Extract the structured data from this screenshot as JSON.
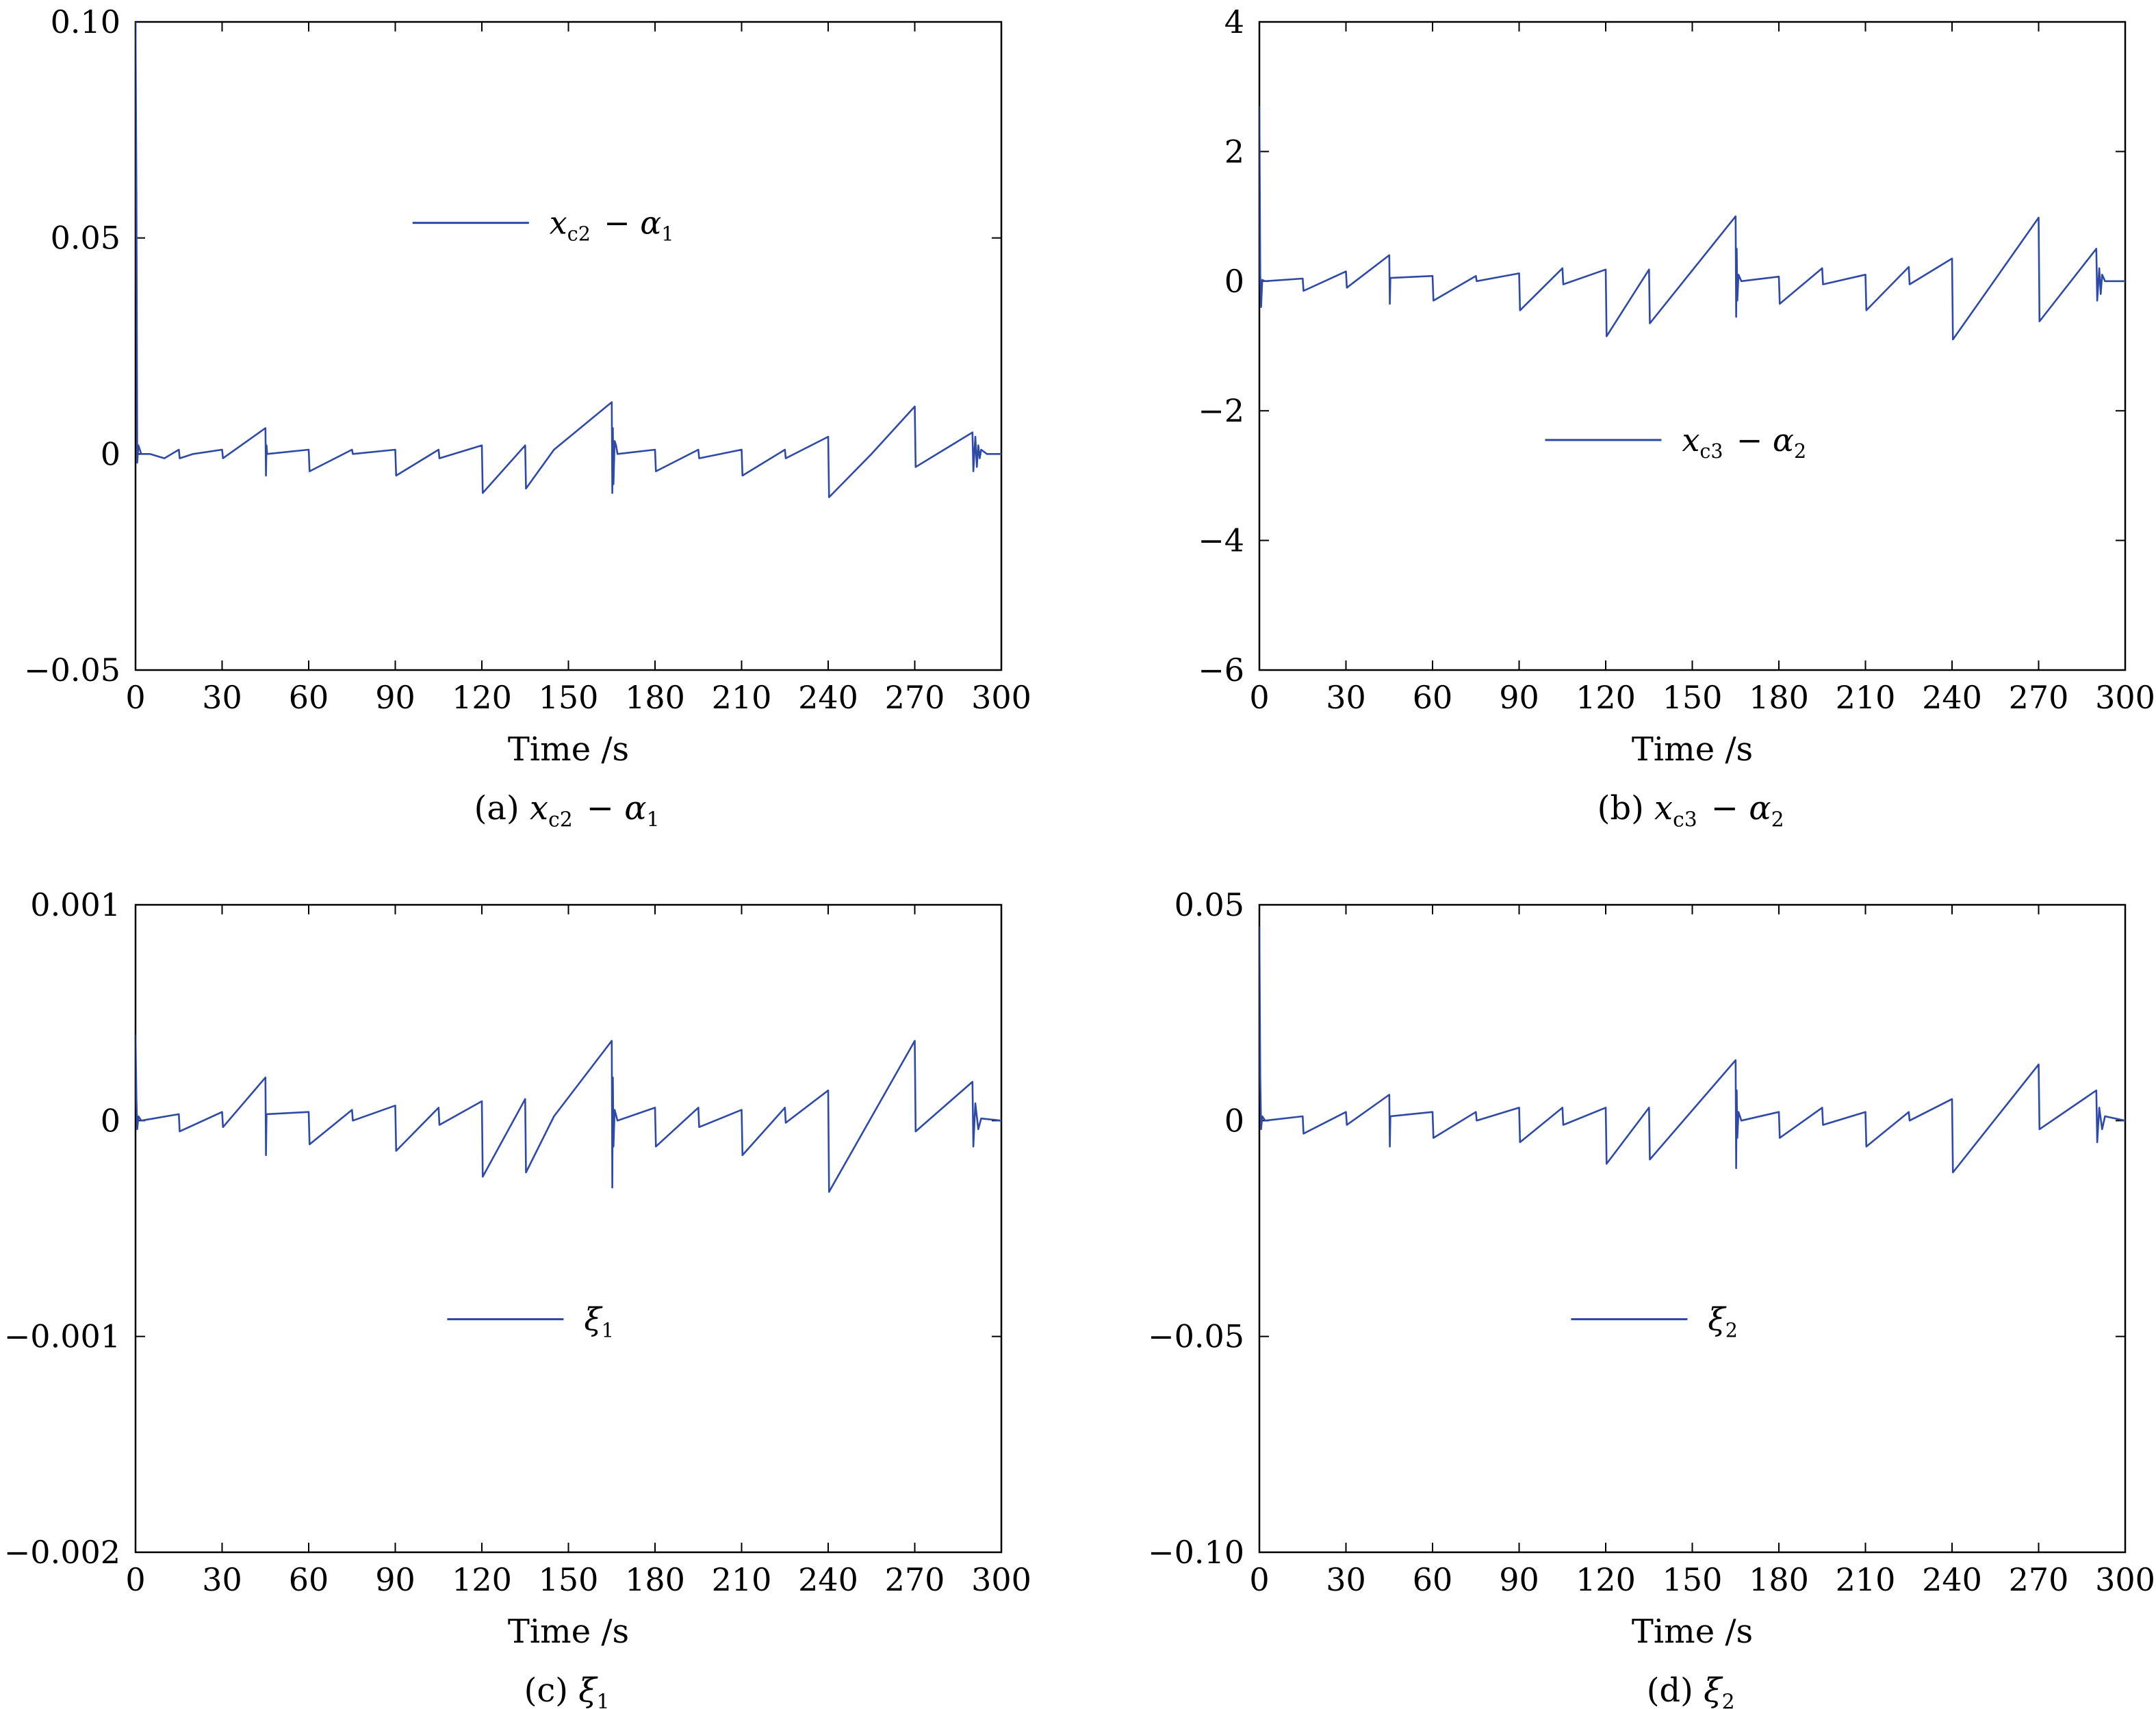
{
  "line_color": "#2e4aa6",
  "chart_data": [
    {
      "type": "line",
      "caption": {
        "prefix": "(a) ",
        "math": "x_c2 − α_1"
      },
      "xlabel": "Time /s",
      "ylabel": "",
      "xlim": [
        0,
        300
      ],
      "ylim": [
        -0.05,
        0.1
      ],
      "xticks": [
        0,
        30,
        60,
        90,
        120,
        150,
        180,
        210,
        240,
        270,
        300
      ],
      "xtick_labels": [
        "0",
        "30",
        "60",
        "90",
        "120",
        "150",
        "180",
        "210",
        "240",
        "270",
        "300"
      ],
      "yticks": [
        0.1,
        0.05,
        0,
        -0.05
      ],
      "ytick_labels": [
        "0.10",
        "0.05",
        "0",
        "−0.05"
      ],
      "legend": {
        "label": "x_c2 − α_1",
        "position": "upper-center"
      },
      "grid": false,
      "series": [
        {
          "name": "x_c2 − α_1",
          "x": [
            0,
            0.3,
            0.6,
            1,
            2,
            5,
            10,
            15,
            15.3,
            20,
            30,
            30.3,
            45,
            45.2,
            45.4,
            45.6,
            60,
            60.3,
            75,
            75.3,
            90,
            90.3,
            105,
            105.3,
            120,
            120.3,
            135,
            135.3,
            145,
            165,
            165.2,
            165.4,
            165.6,
            166,
            166.5,
            167,
            180,
            180.3,
            195,
            195.3,
            210,
            210.3,
            225,
            225.3,
            240,
            240.3,
            255,
            270,
            270.3,
            290,
            290.3,
            291,
            291.5,
            292,
            292.5,
            293,
            295,
            300
          ],
          "y": [
            0.1,
            0.06,
            -0.002,
            0.002,
            0,
            0,
            -0.001,
            0.001,
            -0.001,
            0,
            0.001,
            -0.001,
            0.006,
            -0.005,
            0.002,
            0,
            0.001,
            -0.004,
            0.001,
            0,
            0.001,
            -0.005,
            0.001,
            -0.001,
            0.002,
            -0.009,
            0.002,
            -0.008,
            0.001,
            0.012,
            -0.009,
            0.006,
            -0.007,
            0.003,
            0.002,
            0,
            0.001,
            -0.004,
            0.001,
            -0.001,
            0.001,
            -0.005,
            0.001,
            -0.001,
            0.004,
            -0.01,
            0,
            0.011,
            -0.003,
            0.005,
            -0.004,
            0.004,
            -0.003,
            0.002,
            -0.001,
            0.001,
            0,
            0
          ]
        }
      ]
    },
    {
      "type": "line",
      "caption": {
        "prefix": "(b) ",
        "math": "x_c3 − α_2"
      },
      "xlabel": "Time /s",
      "ylabel": "",
      "xlim": [
        0,
        300
      ],
      "ylim": [
        -6,
        4
      ],
      "xticks": [
        0,
        30,
        60,
        90,
        120,
        150,
        180,
        210,
        240,
        270,
        300
      ],
      "xtick_labels": [
        "0",
        "30",
        "60",
        "90",
        "120",
        "150",
        "180",
        "210",
        "240",
        "270",
        "300"
      ],
      "yticks": [
        4,
        2,
        0,
        -2,
        -4,
        -6
      ],
      "ytick_labels": [
        "4",
        "2",
        "0",
        "−2",
        "−4",
        "−6"
      ],
      "legend": {
        "label": "x_c3 − α_2",
        "position": "center"
      },
      "grid": false,
      "series": [
        {
          "name": "x_c3 − α_2",
          "x": [
            0,
            0.3,
            0.6,
            1,
            2,
            15,
            15.3,
            30,
            30.3,
            45,
            45.2,
            45.4,
            60,
            60.3,
            75,
            75.3,
            90,
            90.3,
            105,
            105.3,
            120,
            120.3,
            135,
            135.3,
            165,
            165.2,
            165.4,
            165.6,
            166,
            167,
            180,
            180.3,
            195,
            195.3,
            210,
            210.3,
            225,
            225.3,
            240,
            240.3,
            270,
            270.3,
            290,
            290.3,
            291,
            291.5,
            292,
            293,
            300
          ],
          "y": [
            2.7,
            0.1,
            -0.4,
            0.02,
            0,
            0.04,
            -0.15,
            0.15,
            -0.1,
            0.4,
            -0.35,
            0.05,
            0.08,
            -0.3,
            0.08,
            0,
            0.12,
            -0.45,
            0.2,
            -0.05,
            0.18,
            -0.85,
            0.18,
            -0.65,
            1.0,
            -0.55,
            0.5,
            -0.3,
            0.1,
            0,
            0.07,
            -0.35,
            0.2,
            -0.05,
            0.1,
            -0.45,
            0.22,
            -0.05,
            0.35,
            -0.9,
            0.98,
            -0.62,
            0.5,
            -0.3,
            0.2,
            -0.2,
            0.1,
            0,
            0
          ]
        }
      ]
    },
    {
      "type": "line",
      "caption": {
        "prefix": "(c) ",
        "math": "ξ_1"
      },
      "xlabel": "Time /s",
      "ylabel": "",
      "xlim": [
        0,
        300
      ],
      "ylim": [
        -0.002,
        0.001
      ],
      "xticks": [
        0,
        30,
        60,
        90,
        120,
        150,
        180,
        210,
        240,
        270,
        300
      ],
      "xtick_labels": [
        "0",
        "30",
        "60",
        "90",
        "120",
        "150",
        "180",
        "210",
        "240",
        "270",
        "300"
      ],
      "yticks": [
        0.001,
        0,
        -0.001,
        -0.002
      ],
      "ytick_labels": [
        "0.001",
        "0",
        "−0.001",
        "−0.002"
      ],
      "legend": {
        "label": "ξ_1",
        "position": "lower-center"
      },
      "grid": false,
      "series": [
        {
          "name": "ξ_1",
          "x": [
            0,
            0.3,
            0.6,
            1,
            2,
            15,
            15.3,
            30,
            30.3,
            45,
            45.2,
            45.4,
            60,
            60.3,
            75,
            75.3,
            90,
            90.3,
            105,
            105.3,
            120,
            120.3,
            135,
            135.3,
            145,
            165,
            165.2,
            165.4,
            165.6,
            166,
            167,
            180,
            180.3,
            195,
            195.3,
            210,
            210.3,
            225,
            225.3,
            240,
            240.3,
            270,
            270.3,
            290,
            290.3,
            291,
            292,
            293,
            300
          ],
          "y": [
            0.0004,
            0.0001,
            -4e-05,
            2e-05,
            0,
            3e-05,
            -5e-05,
            4e-05,
            -3e-05,
            0.0002,
            -0.00016,
            3e-05,
            4e-05,
            -0.00011,
            5e-05,
            0,
            7e-05,
            -0.00014,
            6e-05,
            -2e-05,
            9e-05,
            -0.00026,
            0.0001,
            -0.00024,
            2e-05,
            0.00037,
            -0.00031,
            0.0002,
            -0.00012,
            5e-05,
            0,
            6e-05,
            -0.00012,
            6e-05,
            -3e-05,
            5e-05,
            -0.00016,
            6e-05,
            -1e-05,
            0.00014,
            -0.00033,
            0.00037,
            -5e-05,
            0.00018,
            -0.00012,
            8e-05,
            -4e-05,
            1e-05,
            0
          ]
        }
      ]
    },
    {
      "type": "line",
      "caption": {
        "prefix": "(d) ",
        "math": "ξ_2"
      },
      "xlabel": "Time /s",
      "ylabel": "",
      "xlim": [
        0,
        300
      ],
      "ylim": [
        -0.1,
        0.05
      ],
      "xticks": [
        0,
        30,
        60,
        90,
        120,
        150,
        180,
        210,
        240,
        270,
        300
      ],
      "xtick_labels": [
        "0",
        "30",
        "60",
        "90",
        "120",
        "150",
        "180",
        "210",
        "240",
        "270",
        "300"
      ],
      "yticks": [
        0.05,
        0,
        -0.05,
        -0.1
      ],
      "ytick_labels": [
        "0.05",
        "0",
        "−0.05",
        "−0.10"
      ],
      "legend": {
        "label": "ξ_2",
        "position": "lower-center"
      },
      "grid": false,
      "series": [
        {
          "name": "ξ_2",
          "x": [
            0,
            0.3,
            0.6,
            1,
            2,
            15,
            15.3,
            30,
            30.3,
            45,
            45.2,
            45.4,
            60,
            60.3,
            75,
            75.3,
            90,
            90.3,
            105,
            105.3,
            120,
            120.3,
            135,
            135.3,
            165,
            165.2,
            165.4,
            165.6,
            166,
            167,
            180,
            180.3,
            195,
            195.3,
            210,
            210.3,
            225,
            225.3,
            240,
            240.3,
            270,
            270.3,
            290,
            290.3,
            291,
            292,
            293,
            300
          ],
          "y": [
            0.045,
            0.01,
            -0.002,
            0.001,
            0,
            0.001,
            -0.003,
            0.002,
            -0.001,
            0.006,
            -0.006,
            0.001,
            0.002,
            -0.004,
            0.002,
            0,
            0.003,
            -0.005,
            0.003,
            -0.001,
            0.003,
            -0.01,
            0.003,
            -0.009,
            0.014,
            -0.011,
            0.007,
            -0.004,
            0.002,
            0,
            0.002,
            -0.004,
            0.003,
            -0.001,
            0.002,
            -0.006,
            0.002,
            0,
            0.005,
            -0.012,
            0.013,
            -0.002,
            0.007,
            -0.005,
            0.003,
            -0.002,
            0.001,
            0
          ]
        }
      ]
    }
  ]
}
